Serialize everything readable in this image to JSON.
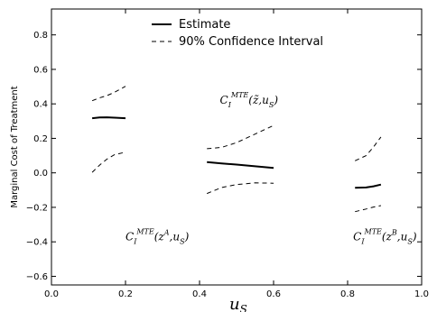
{
  "chart_data": {
    "type": "line",
    "title": "",
    "ylabel": "Marginal Cost of Treatment",
    "xlabel": {
      "base": "u",
      "sub": "S"
    },
    "xlim": [
      0.0,
      1.0
    ],
    "ylim": [
      -0.65,
      0.95
    ],
    "xticks": [
      0.0,
      0.2,
      0.4,
      0.6,
      0.8,
      1.0
    ],
    "xtick_labels": [
      "0.0",
      "0.2",
      "0.4",
      "0.6",
      "0.8",
      "1.0"
    ],
    "yticks": [
      -0.6,
      -0.4,
      -0.2,
      0.0,
      0.2,
      0.4,
      0.6,
      0.8
    ],
    "ytick_labels": [
      "−0.6",
      "−0.4",
      "−0.2",
      "0.0",
      "0.2",
      "0.4",
      "0.6",
      "0.8"
    ],
    "grid": false,
    "legend": {
      "placement": "top-center",
      "entries": [
        {
          "label": "Estimate",
          "style": "solid"
        },
        {
          "label": "90% Confidence Interval",
          "style": "dashed"
        }
      ]
    },
    "series": [
      {
        "legend": "Estimate",
        "style": "solid",
        "x": [
          0.11,
          0.13,
          0.15,
          0.17,
          0.2
        ],
        "y": [
          0.317,
          0.321,
          0.322,
          0.32,
          0.317
        ]
      },
      {
        "legend": "90% Confidence Interval",
        "style": "dashed",
        "x": [
          0.11,
          0.13,
          0.15,
          0.17,
          0.2
        ],
        "y": [
          0.418,
          0.435,
          0.448,
          0.467,
          0.502
        ]
      },
      {
        "legend": "90% Confidence Interval",
        "style": "dashed",
        "x": [
          0.11,
          0.13,
          0.15,
          0.17,
          0.2
        ],
        "y": [
          0.003,
          0.045,
          0.08,
          0.105,
          0.12
        ]
      },
      {
        "legend": "Estimate",
        "style": "solid",
        "x": [
          0.42,
          0.46,
          0.5,
          0.55,
          0.6
        ],
        "y": [
          0.062,
          0.055,
          0.048,
          0.038,
          0.028
        ]
      },
      {
        "legend": "90% Confidence Interval",
        "style": "dashed",
        "x": [
          0.42,
          0.46,
          0.5,
          0.55,
          0.6
        ],
        "y": [
          0.14,
          0.148,
          0.175,
          0.225,
          0.275
        ]
      },
      {
        "legend": "90% Confidence Interval",
        "style": "dashed",
        "x": [
          0.42,
          0.46,
          0.5,
          0.55,
          0.6
        ],
        "y": [
          -0.12,
          -0.085,
          -0.068,
          -0.058,
          -0.06
        ]
      },
      {
        "legend": "Estimate",
        "style": "solid",
        "x": [
          0.82,
          0.85,
          0.87,
          0.89
        ],
        "y": [
          -0.087,
          -0.085,
          -0.078,
          -0.068
        ]
      },
      {
        "legend": "90% Confidence Interval",
        "style": "dashed",
        "x": [
          0.82,
          0.85,
          0.87,
          0.89
        ],
        "y": [
          0.07,
          0.1,
          0.15,
          0.208
        ]
      },
      {
        "legend": "90% Confidence Interval",
        "style": "dashed",
        "x": [
          0.82,
          0.85,
          0.87,
          0.89
        ],
        "y": [
          -0.225,
          -0.21,
          -0.198,
          -0.19
        ]
      }
    ],
    "annotations": [
      {
        "base": "C",
        "sub": "I",
        "sup": "MTE",
        "args": "(z̃,u",
        "argsub": "S",
        "close": ")",
        "x": 0.455,
        "y": 0.4
      },
      {
        "base": "C",
        "sub": "I",
        "sup": "MTE",
        "args": "(z",
        "argsup": "A",
        "args2": ",u",
        "argsub": "S",
        "close": ")",
        "x": 0.2,
        "y": -0.39
      },
      {
        "base": "C",
        "sub": "I",
        "sup": "MTE",
        "args": "(z",
        "argsup": "B",
        "args2": ",u",
        "argsub": "S",
        "close": ")",
        "x": 0.815,
        "y": -0.39
      }
    ]
  }
}
